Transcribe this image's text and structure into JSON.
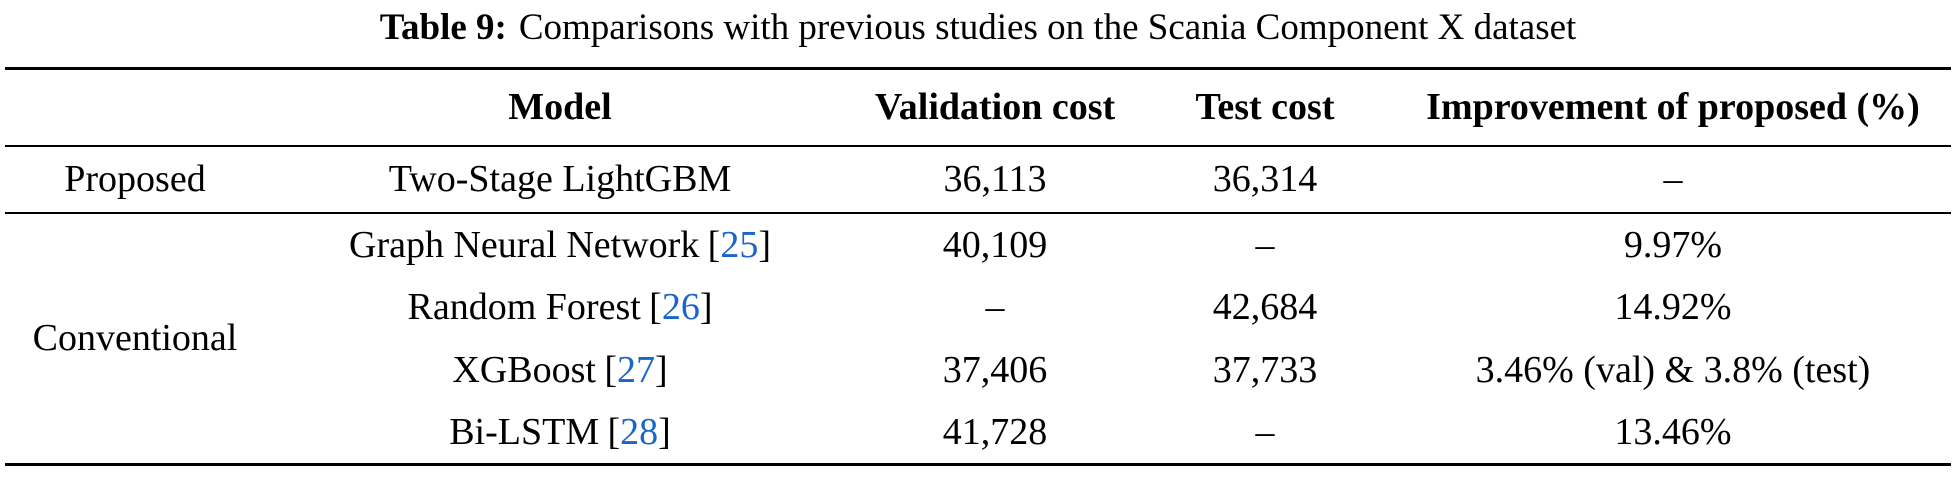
{
  "caption": {
    "label": "Table 9:",
    "text": "Comparisons with previous studies on the Scania Component X dataset"
  },
  "table": {
    "headers": {
      "group": "",
      "model": "Model",
      "validation": "Validation cost",
      "test": "Test cost",
      "improvement": "Improvement of proposed (%)"
    },
    "citation_bracket_open": "[",
    "citation_bracket_close": "]",
    "colors": {
      "citation_blue": "#1b64c8",
      "text": "#000000",
      "rule": "#000000"
    },
    "rows": [
      {
        "group": "Proposed",
        "model": "Two-Stage LightGBM",
        "citation": "",
        "validation": "36,113",
        "test": "36,314",
        "improvement": "–"
      },
      {
        "group": "Conventional",
        "model": "Graph Neural Network",
        "citation": "25",
        "validation": "40,109",
        "test": "–",
        "improvement": "9.97%"
      },
      {
        "group": "",
        "model": "Random Forest",
        "citation": "26",
        "validation": "–",
        "test": "42,684",
        "improvement": "14.92%"
      },
      {
        "group": "",
        "model": "XGBoost",
        "citation": "27",
        "validation": "37,406",
        "test": "37,733",
        "improvement": "3.46% (val) & 3.8% (test)"
      },
      {
        "group": "",
        "model": "Bi-LSTM",
        "citation": "28",
        "validation": "41,728",
        "test": "–",
        "improvement": "13.46%"
      }
    ]
  }
}
